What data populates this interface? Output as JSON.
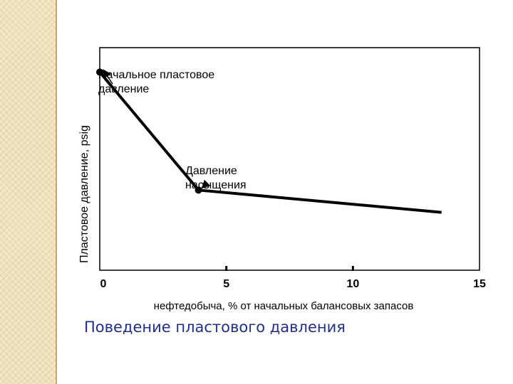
{
  "slide": {
    "caption": "Поведение пластового давления",
    "colors": {
      "caption": "#1f2f8f",
      "side_strip": "#f2e6c4",
      "line": "#000000"
    }
  },
  "chart_data": {
    "type": "line",
    "title": "",
    "xlabel": "нефтедобыча, % от начальных балансовых запасов",
    "ylabel": "Пластовое давление, psig",
    "xlim": [
      0,
      15
    ],
    "x_ticks": [
      "0",
      "5",
      "10",
      "15"
    ],
    "y_ticks": [],
    "grid": false,
    "series": [
      {
        "x": [
          0,
          3.9,
          13.5
        ],
        "y": [
          0.89,
          0.36,
          0.26
        ]
      }
    ],
    "annotations": [
      {
        "text_lines": [
          "Начальное пластовое",
          "давление"
        ],
        "x": 0,
        "y": 0.89
      },
      {
        "text_lines": [
          "Давление",
          "насыщения"
        ],
        "x": 3.9,
        "y": 0.36
      }
    ]
  }
}
